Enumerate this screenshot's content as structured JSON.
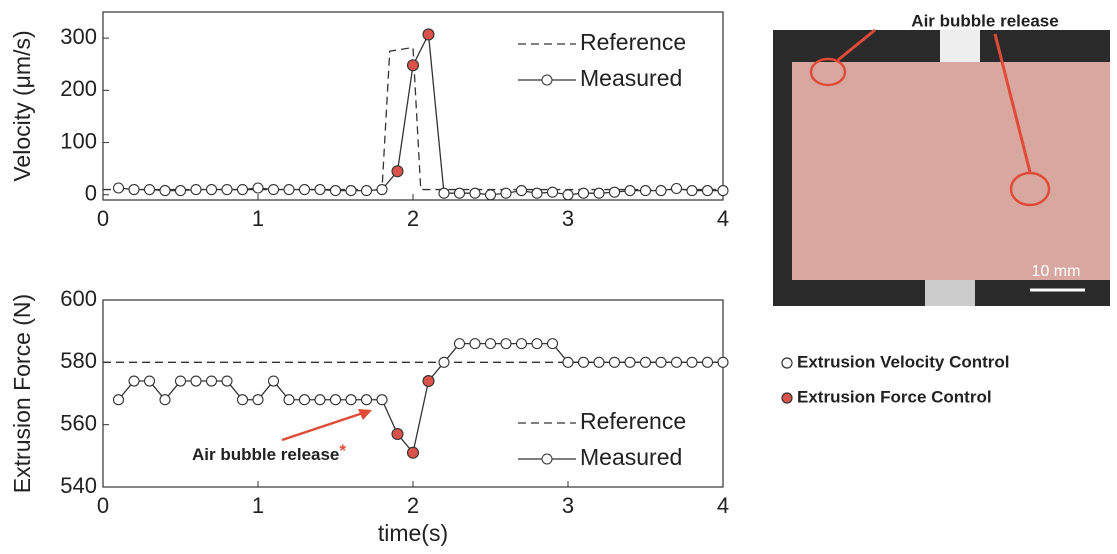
{
  "chart_data": [
    {
      "type": "line",
      "ylabel": "Velocity (μm/s)",
      "xlim": [
        0,
        4
      ],
      "xticks": [
        0,
        1,
        2,
        3,
        4
      ],
      "ylim": [
        -10,
        350
      ],
      "yticks": [
        0,
        100,
        200,
        300
      ],
      "legend": "upper right",
      "series": [
        {
          "name": "Reference",
          "color": "#333333",
          "style": "dashed",
          "x": [
            0,
            1.8,
            1.85,
            2.0,
            2.05,
            4.0
          ],
          "values": [
            10,
            10,
            275,
            282,
            10,
            10
          ]
        },
        {
          "name": "Measured",
          "color": "#333333",
          "style": "solid",
          "marker": "circle",
          "filled_points": [
            18,
            19,
            20
          ],
          "filled_color": "#d9534a",
          "x": [
            0.1,
            0.2,
            0.3,
            0.4,
            0.5,
            0.6,
            0.7,
            0.8,
            0.9,
            1.0,
            1.1,
            1.2,
            1.3,
            1.4,
            1.5,
            1.6,
            1.7,
            1.8,
            1.9,
            2.0,
            2.1,
            2.2,
            2.3,
            2.4,
            2.5,
            2.6,
            2.7,
            2.8,
            2.9,
            3.0,
            3.1,
            3.2,
            3.3,
            3.4,
            3.5,
            3.6,
            3.7,
            3.8,
            3.9,
            4.0
          ],
          "values": [
            13,
            10,
            10,
            8,
            8,
            10,
            10,
            10,
            10,
            13,
            10,
            10,
            10,
            10,
            8,
            8,
            8,
            10,
            45,
            248,
            307,
            3,
            3,
            3,
            0,
            3,
            8,
            3,
            5,
            0,
            3,
            3,
            5,
            8,
            8,
            8,
            12,
            8,
            8,
            8
          ]
        }
      ]
    },
    {
      "type": "line",
      "ylabel": "Extrusion Force (N)",
      "xlabel": "time(s)",
      "xlim": [
        0,
        4
      ],
      "xticks": [
        0,
        1,
        2,
        3,
        4
      ],
      "ylim": [
        540,
        600
      ],
      "yticks": [
        540,
        560,
        580,
        600
      ],
      "legend": "lower right",
      "annotation": "Air bubble release",
      "annotation_mark": "*",
      "series": [
        {
          "name": "Reference",
          "color": "#333333",
          "style": "dashed",
          "x": [
            0,
            4
          ],
          "values": [
            580,
            580
          ]
        },
        {
          "name": "Measured",
          "color": "#333333",
          "style": "solid",
          "marker": "circle",
          "filled_points": [
            18,
            19,
            20
          ],
          "filled_color": "#d9534a",
          "x": [
            0.1,
            0.2,
            0.3,
            0.4,
            0.5,
            0.6,
            0.7,
            0.8,
            0.9,
            1.0,
            1.1,
            1.2,
            1.3,
            1.4,
            1.5,
            1.6,
            1.7,
            1.8,
            1.9,
            2.0,
            2.1,
            2.2,
            2.3,
            2.4,
            2.5,
            2.6,
            2.7,
            2.8,
            2.9,
            3.0,
            3.1,
            3.2,
            3.3,
            3.4,
            3.5,
            3.6,
            3.7,
            3.8,
            3.9,
            4.0
          ],
          "values": [
            568,
            574,
            574,
            568,
            574,
            574,
            574,
            574,
            568,
            568,
            574,
            568,
            568,
            568,
            568,
            568,
            568,
            568,
            557,
            551,
            574,
            580,
            586,
            586,
            586,
            586,
            586,
            586,
            586,
            580,
            580,
            580,
            580,
            580,
            580,
            580,
            580,
            580,
            580,
            580
          ]
        }
      ]
    }
  ],
  "photo": {
    "annotation": "Air bubble release",
    "scale_label": "10 mm"
  },
  "side_legend": {
    "items": [
      "Extrusion Velocity Control",
      "Extrusion Force Control"
    ]
  }
}
